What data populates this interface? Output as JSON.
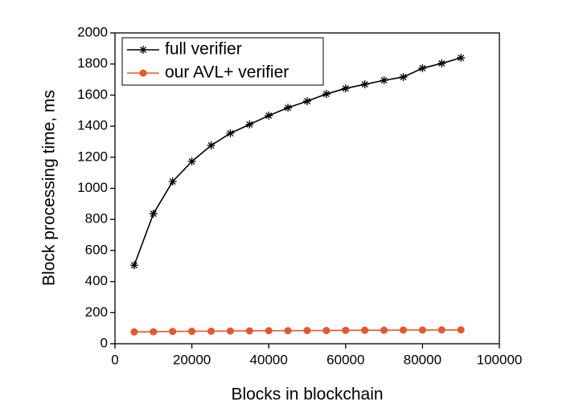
{
  "chart_data": {
    "type": "line",
    "x_label": "Blocks in blockchain",
    "y_label": "Block processing time, ms",
    "x": [
      5000,
      10000,
      15000,
      20000,
      25000,
      30000,
      35000,
      40000,
      45000,
      50000,
      55000,
      60000,
      65000,
      70000,
      75000,
      80000,
      85000,
      90000
    ],
    "series": [
      {
        "name": "full verifier",
        "color": "#000000",
        "marker": "asterisk",
        "values": [
          505,
          837,
          1044,
          1173,
          1276,
          1354,
          1411,
          1468,
          1519,
          1561,
          1607,
          1643,
          1669,
          1695,
          1716,
          1773,
          1804,
          1840
        ]
      },
      {
        "name": "our AVL+ verifier",
        "color": "#e8542b",
        "marker": "circle",
        "values": [
          76,
          77,
          79,
          80,
          81,
          82,
          83,
          84,
          84,
          85,
          85,
          86,
          87,
          87,
          88,
          88,
          89,
          89
        ]
      }
    ],
    "xlim": [
      0,
      100000
    ],
    "xticks": [
      0,
      20000,
      40000,
      60000,
      80000,
      100000
    ],
    "ylim": [
      0,
      2000
    ],
    "yticks": [
      0,
      200,
      400,
      600,
      800,
      1000,
      1200,
      1400,
      1600,
      1800,
      2000
    ],
    "legend": "upper left"
  }
}
